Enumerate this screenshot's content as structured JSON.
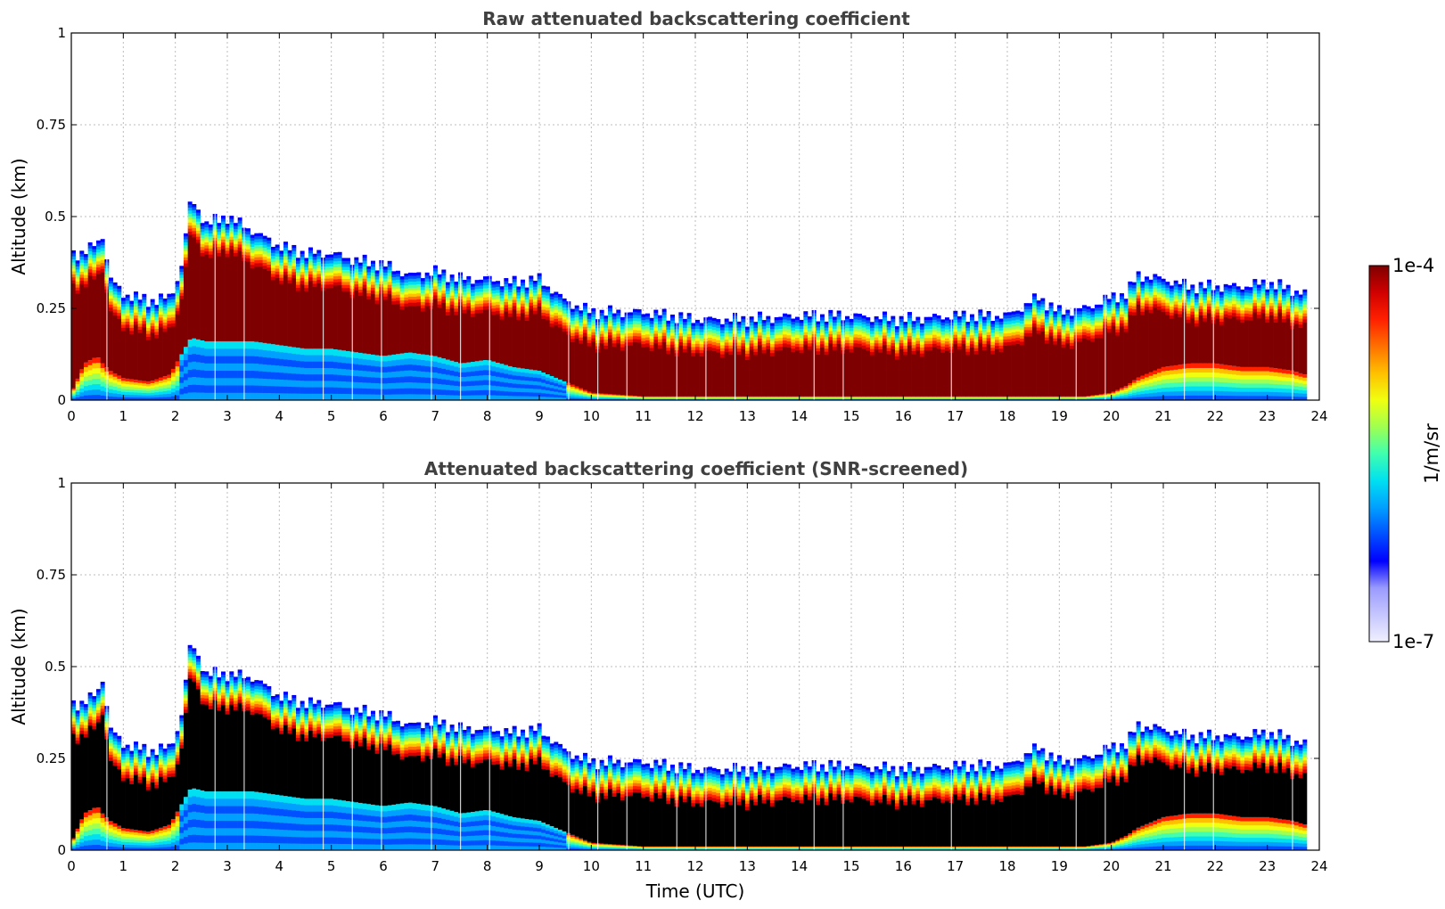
{
  "chart_data": [
    {
      "type": "heatmap",
      "title": "Raw attenuated backscattering coefficient",
      "xlabel": "",
      "ylabel": "Altitude (km)",
      "xlim": [
        0,
        24
      ],
      "ylim": [
        0,
        1
      ],
      "x_ticks": [
        "0",
        "1",
        "2",
        "3",
        "4",
        "5",
        "6",
        "7",
        "8",
        "9",
        "10",
        "11",
        "12",
        "13",
        "14",
        "15",
        "16",
        "17",
        "18",
        "19",
        "20",
        "21",
        "22",
        "23",
        "24"
      ],
      "y_ticks": [
        "0",
        "0.25",
        "0.5",
        "0.75",
        "1"
      ],
      "grid": true,
      "time_utc": [
        0,
        0.25,
        0.5,
        0.6,
        0.75,
        1,
        1.5,
        1.9,
        2.1,
        2.3,
        2.6,
        3,
        3.5,
        4,
        4.5,
        5,
        5.5,
        6,
        6.5,
        7,
        7.5,
        8,
        8.5,
        9,
        9.5,
        10,
        11,
        12,
        13,
        14,
        15,
        16,
        17,
        18,
        18.6,
        19,
        19.5,
        20,
        20.3,
        20.5,
        21,
        21.5,
        22,
        22.5,
        23,
        23.5,
        23.7
      ],
      "layer_top_km": [
        0.4,
        0.4,
        0.43,
        0.45,
        0.33,
        0.29,
        0.27,
        0.28,
        0.35,
        0.55,
        0.48,
        0.5,
        0.46,
        0.42,
        0.4,
        0.4,
        0.38,
        0.37,
        0.34,
        0.35,
        0.33,
        0.33,
        0.32,
        0.33,
        0.27,
        0.24,
        0.24,
        0.22,
        0.22,
        0.23,
        0.23,
        0.22,
        0.23,
        0.23,
        0.28,
        0.24,
        0.25,
        0.28,
        0.29,
        0.34,
        0.33,
        0.31,
        0.31,
        0.31,
        0.32,
        0.3,
        0.29
      ],
      "saturated_base_km": [
        0.02,
        0.1,
        0.12,
        0.1,
        0.08,
        0.06,
        0.05,
        0.07,
        0.12,
        0.17,
        0.16,
        0.16,
        0.16,
        0.15,
        0.14,
        0.14,
        0.13,
        0.12,
        0.13,
        0.12,
        0.1,
        0.11,
        0.09,
        0.08,
        0.05,
        0.02,
        0.01,
        0.01,
        0.01,
        0.01,
        0.01,
        0.01,
        0.01,
        0.01,
        0.01,
        0.01,
        0.01,
        0.02,
        0.04,
        0.06,
        0.09,
        0.1,
        0.1,
        0.09,
        0.09,
        0.08,
        0.07
      ],
      "colorbar": {
        "min_label": "1e-7",
        "max_label": "1e-4",
        "units": "1/m/sr",
        "scale": "log"
      }
    },
    {
      "type": "heatmap",
      "title": "Attenuated backscattering coefficient (SNR-screened)",
      "xlabel": "Time (UTC)",
      "ylabel": "Altitude (km)",
      "xlim": [
        0,
        24
      ],
      "ylim": [
        0,
        1
      ],
      "x_ticks": [
        "0",
        "1",
        "2",
        "3",
        "4",
        "5",
        "6",
        "7",
        "8",
        "9",
        "10",
        "11",
        "12",
        "13",
        "14",
        "15",
        "16",
        "17",
        "18",
        "19",
        "20",
        "21",
        "22",
        "23",
        "24"
      ],
      "y_ticks": [
        "0",
        "0.25",
        "0.5",
        "0.75",
        "1"
      ],
      "grid": true,
      "masked_color": "#000000",
      "time_utc": [
        0,
        0.25,
        0.5,
        0.6,
        0.75,
        1,
        1.5,
        1.9,
        2.1,
        2.3,
        2.6,
        3,
        3.5,
        4,
        4.5,
        5,
        5.5,
        6,
        6.5,
        7,
        7.5,
        8,
        8.5,
        9,
        9.5,
        10,
        11,
        12,
        13,
        14,
        15,
        16,
        17,
        18,
        18.6,
        19,
        19.5,
        20,
        20.3,
        20.5,
        21,
        21.5,
        22,
        22.5,
        23,
        23.5,
        23.7
      ],
      "layer_top_km": [
        0.4,
        0.4,
        0.43,
        0.47,
        0.33,
        0.29,
        0.27,
        0.28,
        0.35,
        0.57,
        0.48,
        0.48,
        0.47,
        0.42,
        0.4,
        0.4,
        0.38,
        0.37,
        0.34,
        0.35,
        0.33,
        0.33,
        0.32,
        0.33,
        0.27,
        0.24,
        0.24,
        0.22,
        0.22,
        0.23,
        0.23,
        0.22,
        0.23,
        0.23,
        0.28,
        0.24,
        0.25,
        0.28,
        0.29,
        0.34,
        0.33,
        0.31,
        0.31,
        0.31,
        0.32,
        0.3,
        0.29
      ],
      "masked_base_km": [
        0.02,
        0.1,
        0.12,
        0.1,
        0.08,
        0.06,
        0.05,
        0.07,
        0.12,
        0.17,
        0.16,
        0.16,
        0.16,
        0.15,
        0.14,
        0.14,
        0.13,
        0.12,
        0.13,
        0.12,
        0.1,
        0.11,
        0.09,
        0.08,
        0.05,
        0.02,
        0.01,
        0.01,
        0.01,
        0.01,
        0.01,
        0.01,
        0.01,
        0.01,
        0.01,
        0.01,
        0.01,
        0.02,
        0.04,
        0.06,
        0.09,
        0.1,
        0.1,
        0.09,
        0.09,
        0.08,
        0.07
      ],
      "colorbar": {
        "min_label": "1e-7",
        "max_label": "1e-4",
        "units": "1/m/sr",
        "scale": "log"
      }
    }
  ],
  "colors": {
    "axis": "#000000",
    "grid": "#bdbdbd",
    "title": "#404040",
    "saturated": "#7f0000",
    "masked": "#000000"
  },
  "colormap": [
    "#f0f0ff",
    "#c6c6ff",
    "#9a9aff",
    "#0000ff",
    "#0050ff",
    "#00a0ff",
    "#00e0f0",
    "#40ffb0",
    "#a0ff50",
    "#f0ff10",
    "#ffc000",
    "#ff7000",
    "#ff2000",
    "#d00000",
    "#7f0000"
  ]
}
